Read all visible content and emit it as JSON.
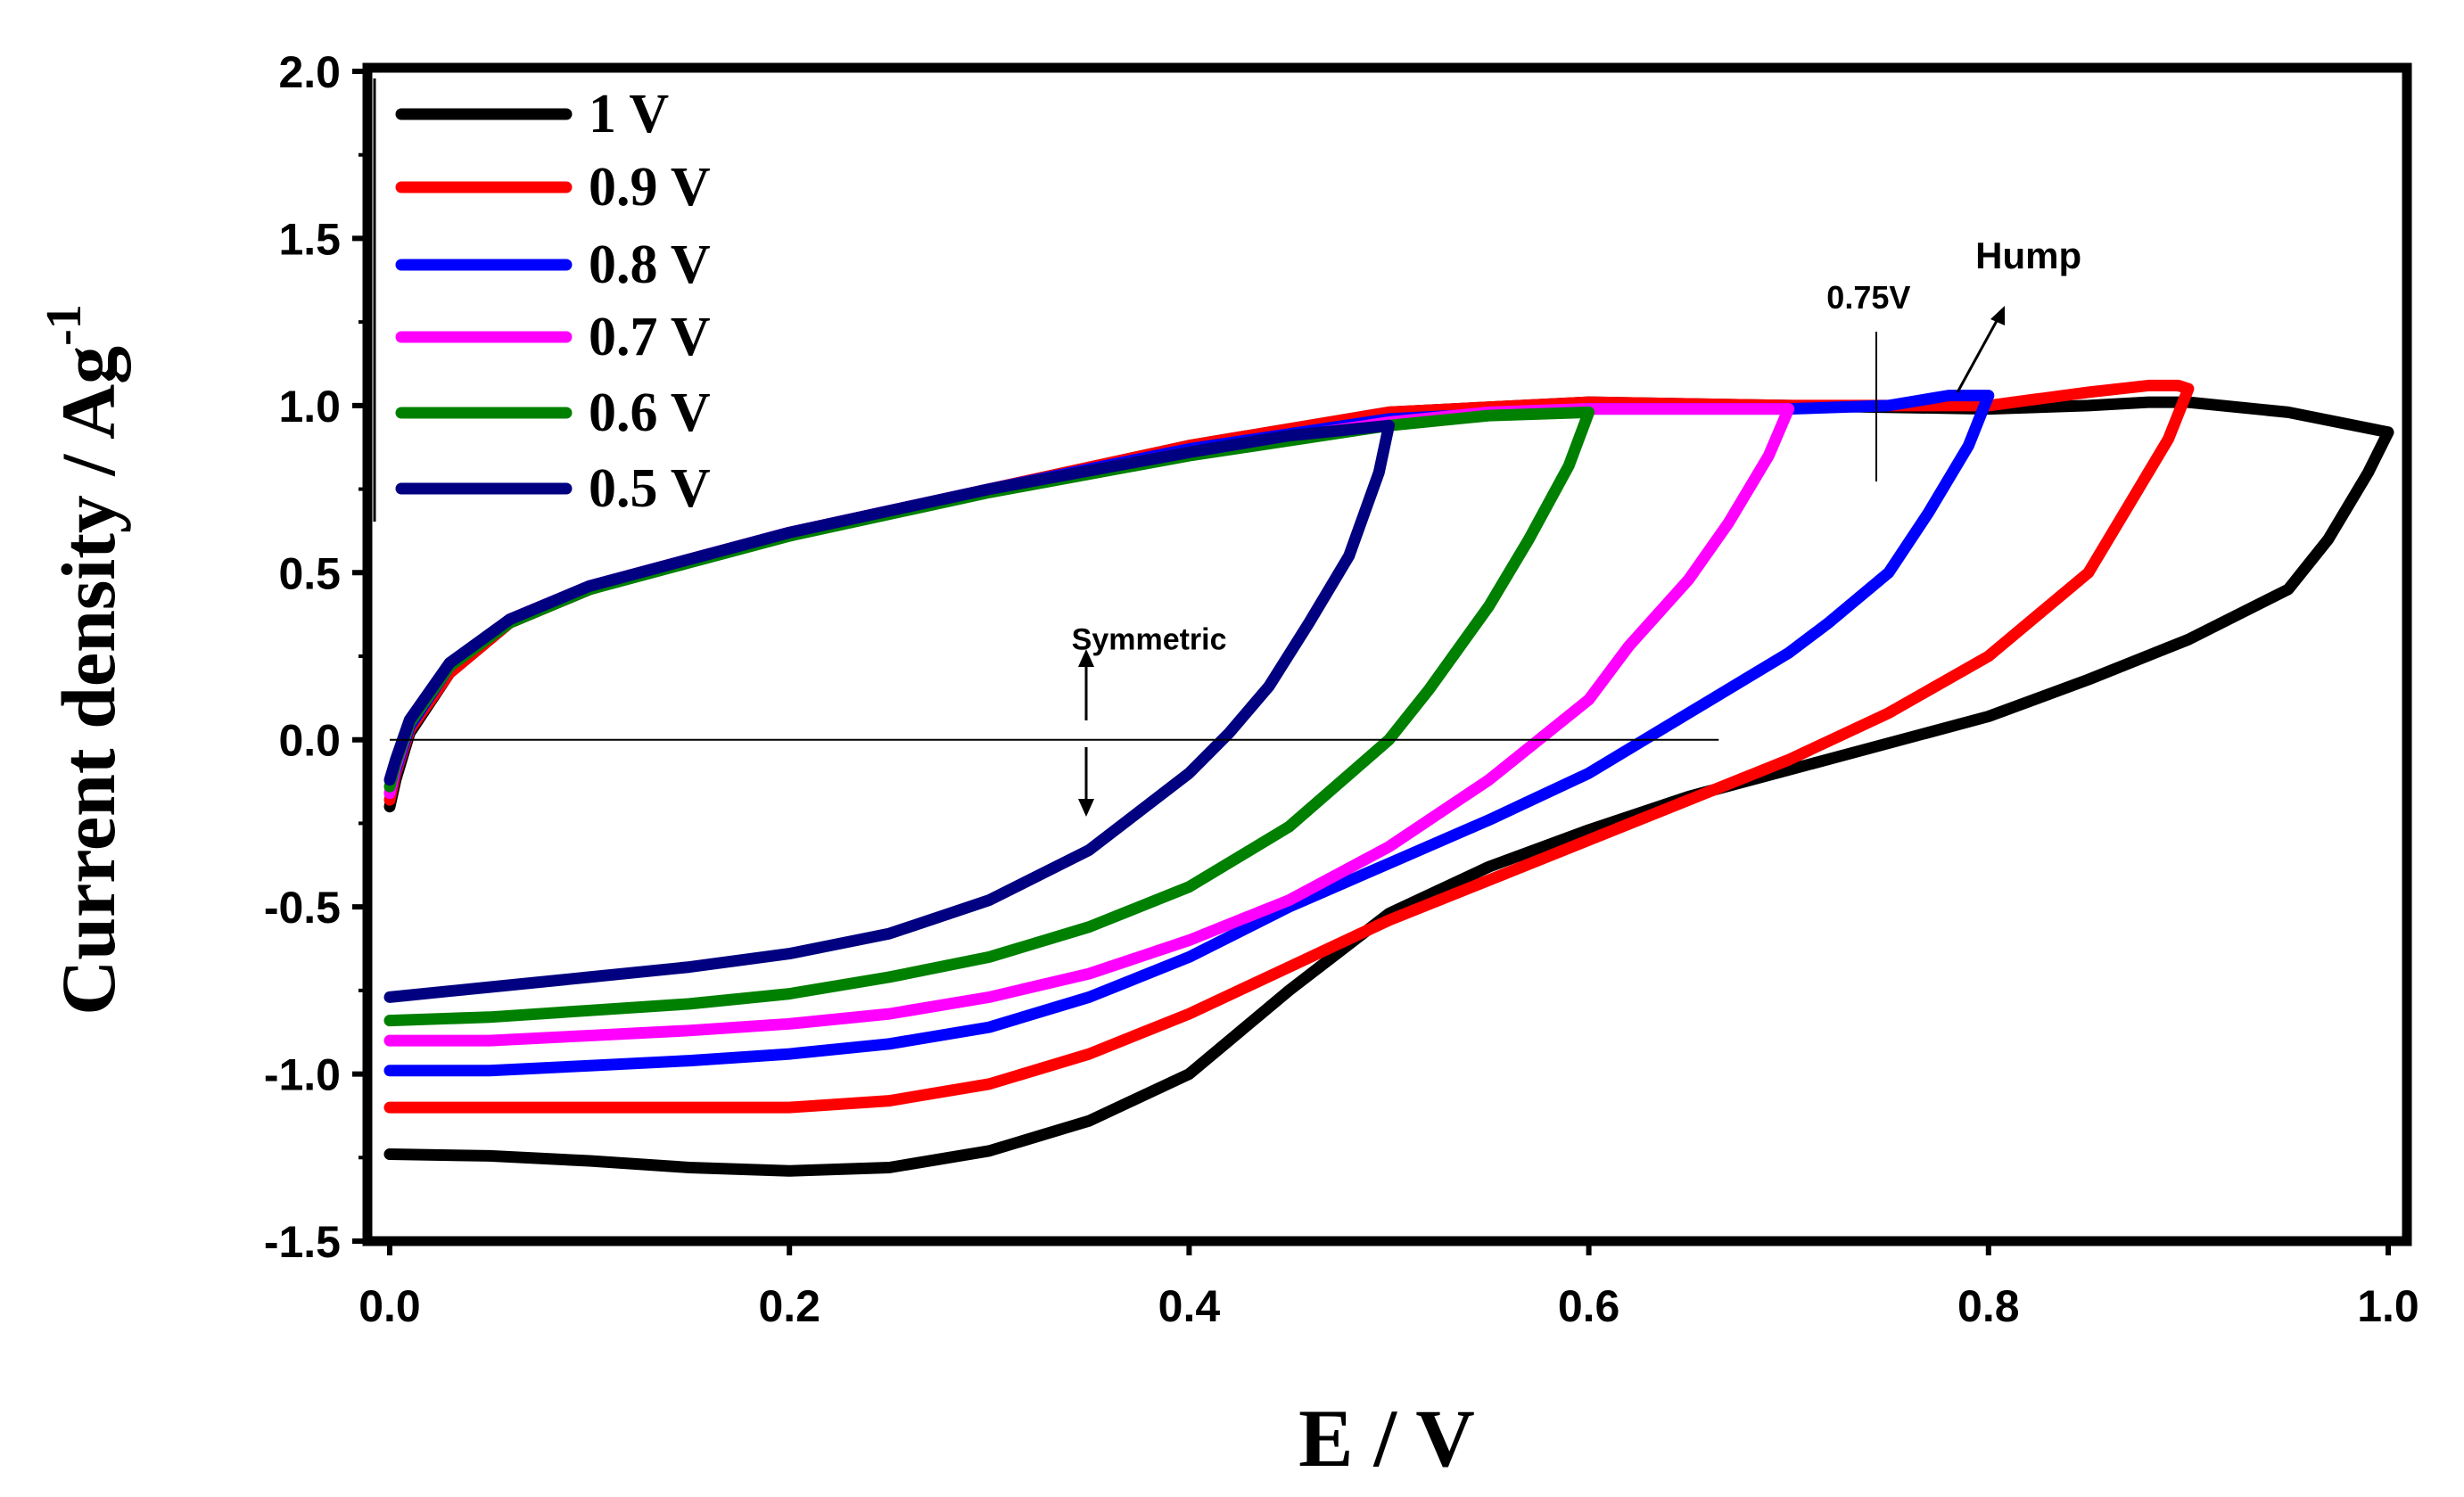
{
  "chart_data": {
    "type": "line",
    "title": "",
    "xlabel": "E / V",
    "ylabel_main": "Current density / Ag",
    "ylabel_sup": "-1",
    "xlim": [
      0.0,
      1.0
    ],
    "ylim": [
      -1.5,
      2.0
    ],
    "x_ticks": [
      "0.0",
      "0.2",
      "0.4",
      "0.6",
      "0.8",
      "1.0"
    ],
    "y_ticks": [
      "2.0",
      "1.5",
      "1.0",
      "0.5",
      "0.0",
      "-0.5",
      "-1.0",
      "-1.5"
    ],
    "grid": false,
    "legend_position": "top-left",
    "series": [
      {
        "name": "1 V",
        "color": "#000000",
        "x": [
          0.0,
          0.003,
          0.01,
          0.03,
          0.06,
          0.1,
          0.15,
          0.2,
          0.3,
          0.4,
          0.5,
          0.6,
          0.7,
          0.8,
          0.85,
          0.88,
          0.9,
          0.95,
          1.0,
          0.99,
          0.97,
          0.95,
          0.9,
          0.85,
          0.8,
          0.75,
          0.7,
          0.65,
          0.6,
          0.55,
          0.5,
          0.45,
          0.4,
          0.35,
          0.3,
          0.25,
          0.2,
          0.15,
          0.1,
          0.05,
          0.0
        ],
        "y": [
          -0.2,
          -0.12,
          0.02,
          0.2,
          0.35,
          0.45,
          0.54,
          0.62,
          0.75,
          0.88,
          0.98,
          1.01,
          1.0,
          0.99,
          1.0,
          1.01,
          1.01,
          0.98,
          0.92,
          0.8,
          0.6,
          0.45,
          0.3,
          0.18,
          0.07,
          -0.01,
          -0.09,
          -0.17,
          -0.27,
          -0.38,
          -0.52,
          -0.75,
          -1.0,
          -1.14,
          -1.23,
          -1.28,
          -1.29,
          -1.28,
          -1.26,
          -1.245,
          -1.24
        ]
      },
      {
        "name": "0.9 V",
        "color": "#ff0000",
        "x": [
          0.0,
          0.003,
          0.01,
          0.03,
          0.06,
          0.1,
          0.15,
          0.2,
          0.3,
          0.4,
          0.5,
          0.6,
          0.7,
          0.8,
          0.85,
          0.88,
          0.895,
          0.9,
          0.89,
          0.87,
          0.85,
          0.82,
          0.8,
          0.75,
          0.7,
          0.65,
          0.6,
          0.55,
          0.5,
          0.45,
          0.4,
          0.35,
          0.3,
          0.25,
          0.2,
          0.15,
          0.1,
          0.05,
          0.0
        ],
        "y": [
          -0.18,
          -0.1,
          0.03,
          0.2,
          0.35,
          0.45,
          0.54,
          0.62,
          0.75,
          0.88,
          0.98,
          1.01,
          1.0,
          1.0,
          1.04,
          1.06,
          1.06,
          1.05,
          0.9,
          0.7,
          0.5,
          0.35,
          0.25,
          0.08,
          -0.06,
          -0.18,
          -0.3,
          -0.42,
          -0.54,
          -0.68,
          -0.82,
          -0.94,
          -1.03,
          -1.08,
          -1.1,
          -1.1,
          -1.1,
          -1.1,
          -1.1
        ]
      },
      {
        "name": "0.8 V",
        "color": "#0000ff",
        "x": [
          0.0,
          0.003,
          0.01,
          0.03,
          0.06,
          0.1,
          0.15,
          0.2,
          0.3,
          0.4,
          0.5,
          0.6,
          0.7,
          0.75,
          0.78,
          0.8,
          0.79,
          0.77,
          0.75,
          0.72,
          0.7,
          0.65,
          0.6,
          0.55,
          0.5,
          0.45,
          0.4,
          0.35,
          0.3,
          0.25,
          0.2,
          0.15,
          0.1,
          0.05,
          0.0
        ],
        "y": [
          -0.16,
          -0.09,
          0.04,
          0.22,
          0.36,
          0.46,
          0.54,
          0.62,
          0.75,
          0.87,
          0.96,
          0.99,
          0.99,
          1.0,
          1.03,
          1.03,
          0.88,
          0.68,
          0.5,
          0.35,
          0.26,
          0.08,
          -0.1,
          -0.24,
          -0.37,
          -0.5,
          -0.65,
          -0.77,
          -0.86,
          -0.91,
          -0.94,
          -0.96,
          -0.975,
          -0.99,
          -0.99
        ]
      },
      {
        "name": "0.7 V",
        "color": "#ff00ff",
        "x": [
          0.0,
          0.003,
          0.01,
          0.03,
          0.06,
          0.1,
          0.15,
          0.2,
          0.3,
          0.4,
          0.5,
          0.55,
          0.6,
          0.65,
          0.7,
          0.69,
          0.67,
          0.65,
          0.62,
          0.6,
          0.55,
          0.5,
          0.45,
          0.4,
          0.35,
          0.3,
          0.25,
          0.2,
          0.15,
          0.1,
          0.05,
          0.0
        ],
        "y": [
          -0.16,
          -0.08,
          0.05,
          0.22,
          0.36,
          0.46,
          0.54,
          0.62,
          0.75,
          0.86,
          0.95,
          0.98,
          0.99,
          0.99,
          0.99,
          0.85,
          0.65,
          0.48,
          0.28,
          0.12,
          -0.12,
          -0.32,
          -0.48,
          -0.6,
          -0.7,
          -0.77,
          -0.82,
          -0.85,
          -0.87,
          -0.885,
          -0.9,
          -0.9
        ]
      },
      {
        "name": "0.6 V",
        "color": "#008000",
        "x": [
          0.0,
          0.003,
          0.01,
          0.03,
          0.06,
          0.1,
          0.15,
          0.2,
          0.3,
          0.4,
          0.5,
          0.55,
          0.6,
          0.59,
          0.57,
          0.55,
          0.52,
          0.5,
          0.45,
          0.4,
          0.35,
          0.3,
          0.25,
          0.2,
          0.15,
          0.1,
          0.05,
          0.0
        ],
        "y": [
          -0.14,
          -0.07,
          0.05,
          0.22,
          0.35,
          0.45,
          0.53,
          0.61,
          0.74,
          0.85,
          0.94,
          0.97,
          0.98,
          0.82,
          0.6,
          0.4,
          0.15,
          0.0,
          -0.26,
          -0.44,
          -0.56,
          -0.65,
          -0.71,
          -0.76,
          -0.79,
          -0.81,
          -0.83,
          -0.84
        ]
      },
      {
        "name": "0.5 V",
        "color": "#000080",
        "x": [
          0.0,
          0.003,
          0.01,
          0.03,
          0.06,
          0.1,
          0.15,
          0.2,
          0.3,
          0.4,
          0.45,
          0.5,
          0.495,
          0.48,
          0.46,
          0.44,
          0.42,
          0.4,
          0.35,
          0.3,
          0.25,
          0.2,
          0.15,
          0.1,
          0.05,
          0.0
        ],
        "y": [
          -0.12,
          -0.06,
          0.06,
          0.23,
          0.36,
          0.46,
          0.54,
          0.62,
          0.75,
          0.86,
          0.91,
          0.94,
          0.8,
          0.55,
          0.35,
          0.16,
          0.02,
          -0.1,
          -0.33,
          -0.48,
          -0.58,
          -0.64,
          -0.68,
          -0.71,
          -0.74,
          -0.77
        ]
      }
    ],
    "annotations": [
      {
        "text": "Symmetric",
        "x": 0.38,
        "y": 0.27
      },
      {
        "text": "0.75V",
        "x": 0.74,
        "y": 1.29
      },
      {
        "text": "Hump",
        "x": 0.82,
        "y": 1.41
      }
    ]
  }
}
